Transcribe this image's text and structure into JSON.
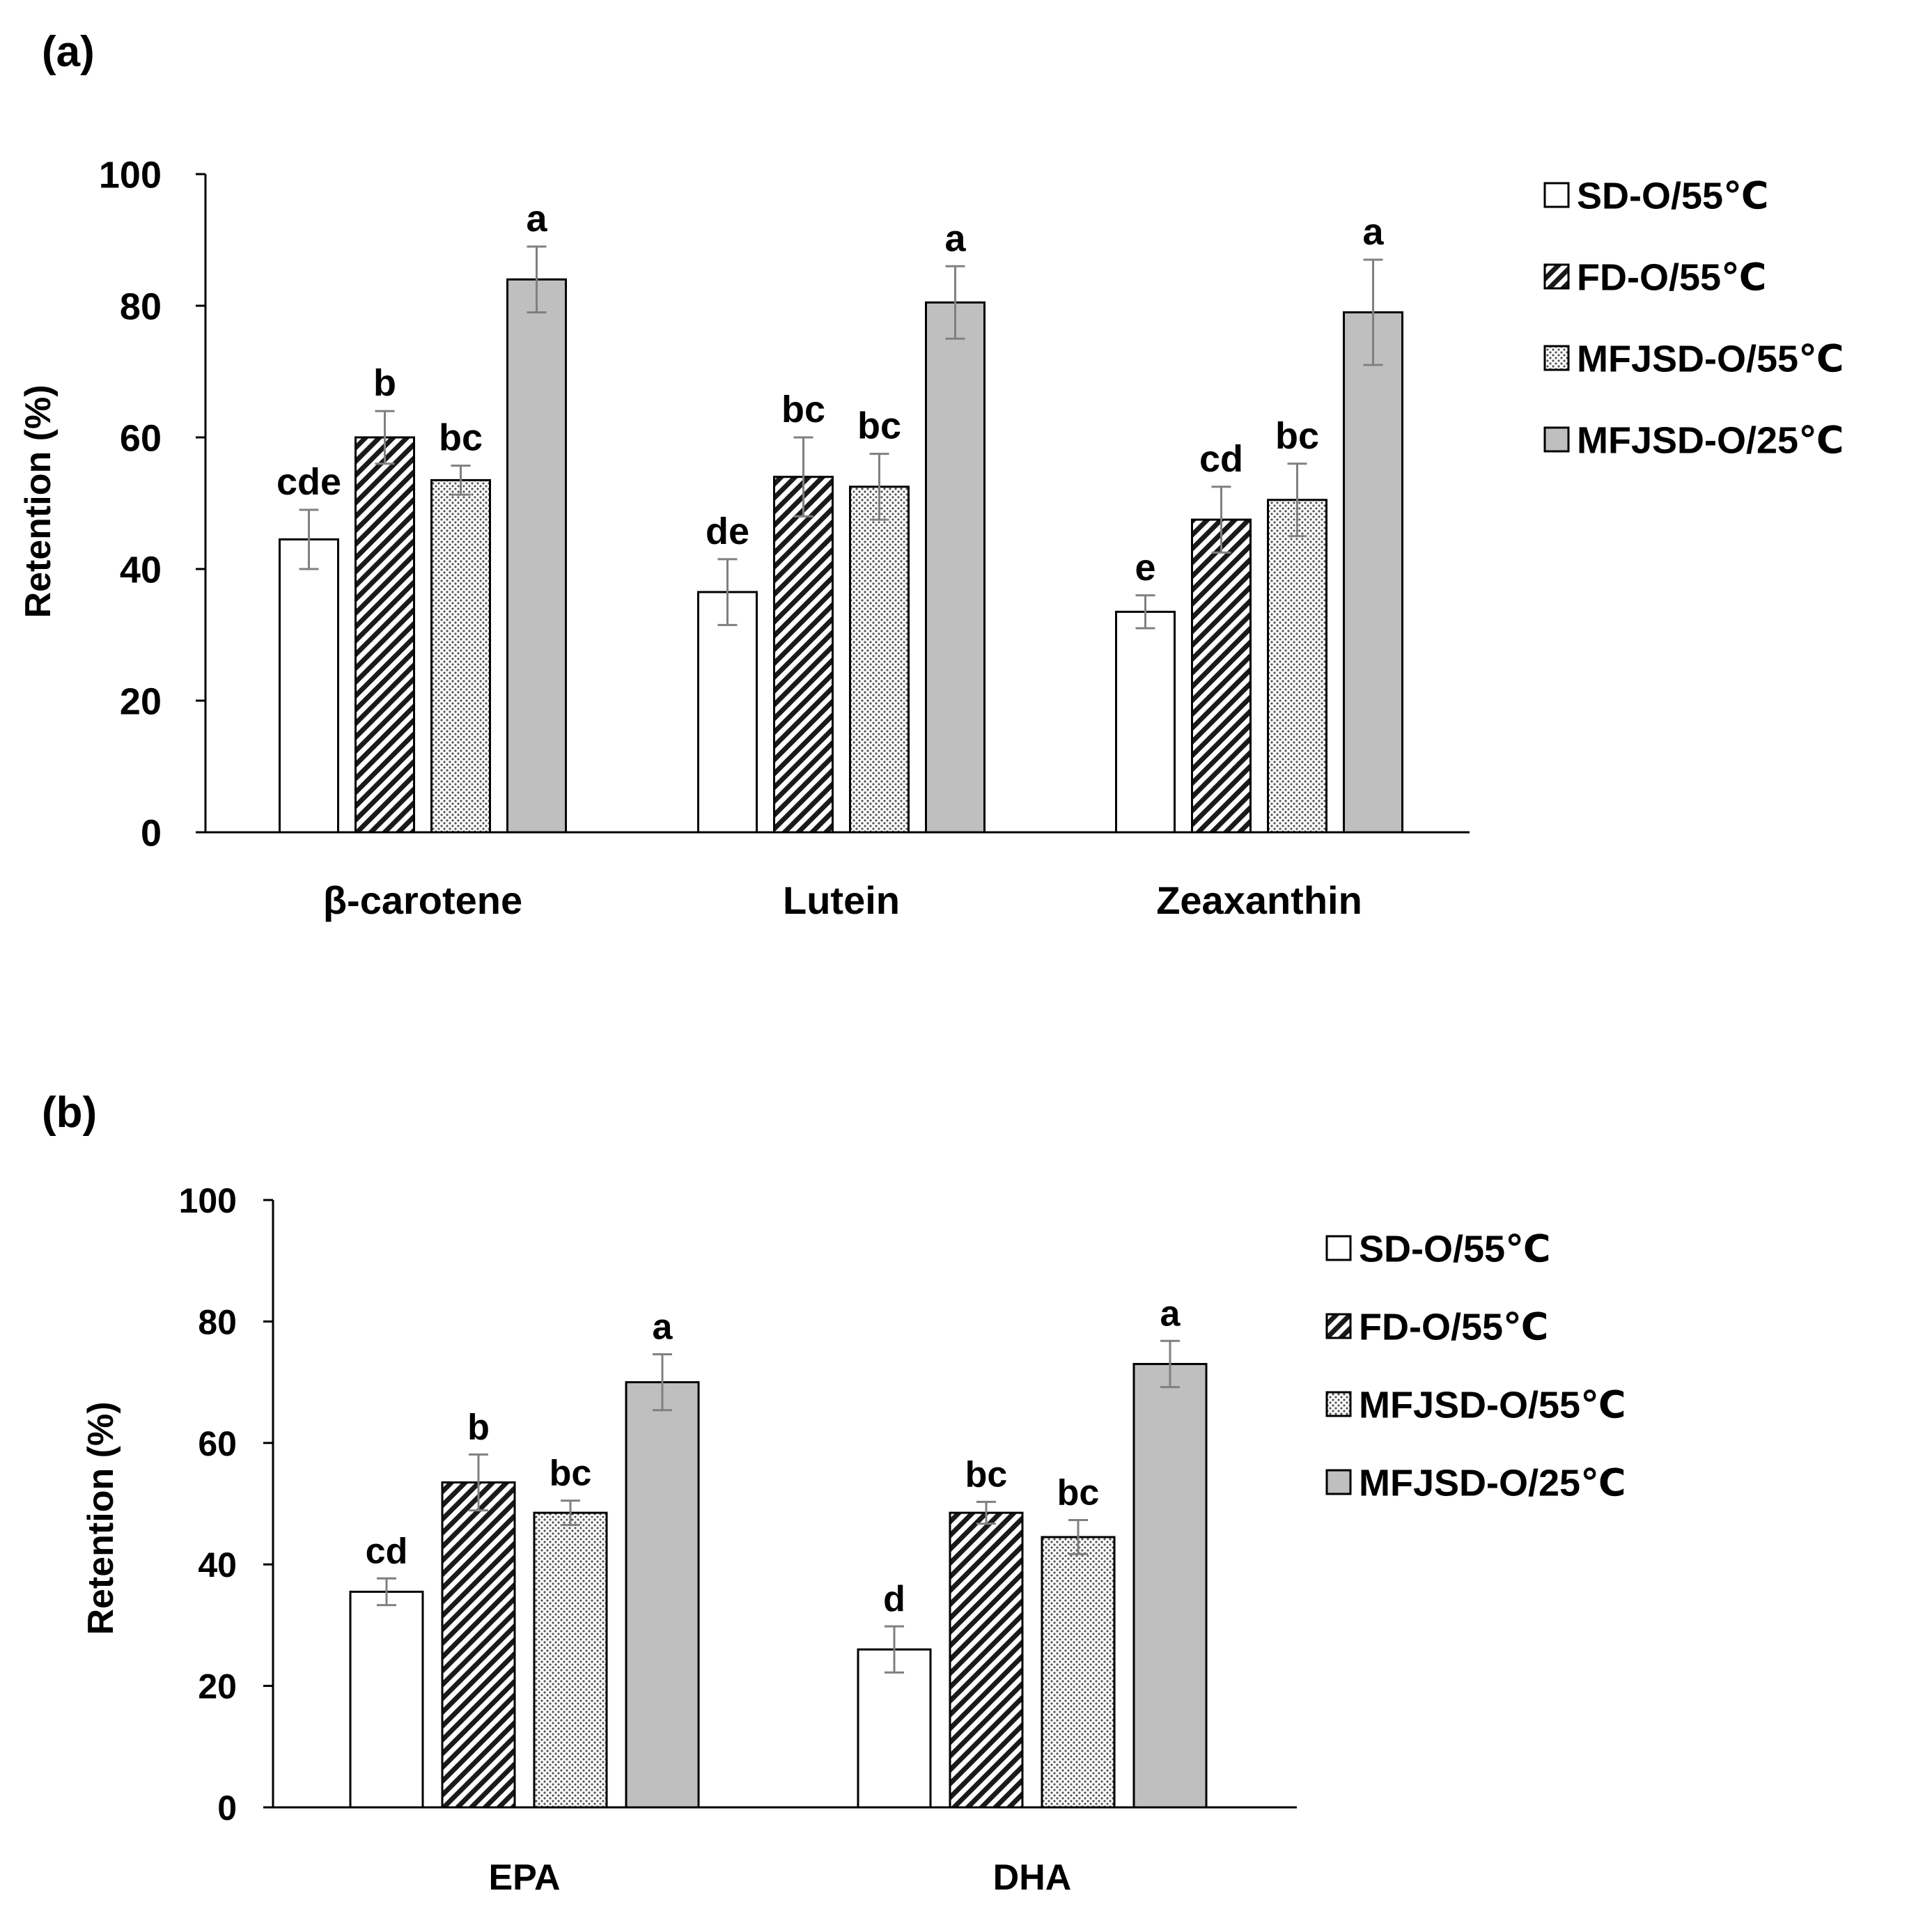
{
  "figure": {
    "panels": [
      {
        "tag": "(a)",
        "legend_labels": [
          "SD-O/55℃",
          "FD-O/55℃",
          "MFJSD-O/55℃",
          "MFJSD-O/25℃"
        ]
      },
      {
        "tag": "(b)",
        "legend_labels": [
          "SD-O/55℃",
          "FD-O/55℃",
          "MFJSD-O/55℃",
          "MFJSD-O/25℃"
        ]
      }
    ]
  },
  "colors": {
    "SD-O/55℃": "#ffffff",
    "FD-O/55℃": "#1a1a1a",
    "MFJSD-O/55℃": "#dcdcdc",
    "MFJSD-O/25℃": "#bfbfbf",
    "error_bar": "#808080",
    "outline": "#000000"
  },
  "chart_data": [
    {
      "type": "bar",
      "panel": "(a)",
      "categories": [
        "β-carotene",
        "Lutein",
        "Zeaxanthin"
      ],
      "ylabel": "Retention  (%)",
      "xlabel": "",
      "ylim": [
        0,
        100
      ],
      "yticks": [
        0,
        20,
        40,
        60,
        80,
        100
      ],
      "series": [
        {
          "name": "SD-O/55℃",
          "pattern": "white",
          "values": [
            44.5,
            36.5,
            33.5
          ],
          "errors": [
            4.5,
            5,
            2.5
          ],
          "letters": [
            "cde",
            "de",
            "e"
          ]
        },
        {
          "name": "FD-O/55℃",
          "pattern": "hatch",
          "values": [
            60,
            54,
            47.5
          ],
          "errors": [
            4,
            6,
            5
          ],
          "letters": [
            "b",
            "bc",
            "cd"
          ]
        },
        {
          "name": "MFJSD-O/55℃",
          "pattern": "dots",
          "values": [
            53.5,
            52.5,
            50.5
          ],
          "errors": [
            2.2,
            5,
            5.5
          ],
          "letters": [
            "bc",
            "bc",
            "bc"
          ]
        },
        {
          "name": "MFJSD-O/25℃",
          "pattern": "gray",
          "values": [
            84,
            80.5,
            79
          ],
          "errors": [
            5,
            5.5,
            8
          ],
          "letters": [
            "a",
            "a",
            "a"
          ]
        }
      ]
    },
    {
      "type": "bar",
      "panel": "(b)",
      "categories": [
        "EPA",
        "DHA"
      ],
      "ylabel": "Retention (%)",
      "xlabel": "",
      "ylim": [
        0,
        100
      ],
      "yticks": [
        0,
        20,
        40,
        60,
        80,
        100
      ],
      "series": [
        {
          "name": "SD-O/55℃",
          "pattern": "white",
          "values": [
            35.5,
            26
          ],
          "errors": [
            2.2,
            3.8
          ],
          "letters": [
            "cd",
            "d"
          ]
        },
        {
          "name": "FD-O/55℃",
          "pattern": "hatch",
          "values": [
            53.5,
            48.5
          ],
          "errors": [
            4.6,
            1.8
          ],
          "letters": [
            "b",
            "bc"
          ]
        },
        {
          "name": "MFJSD-O/55℃",
          "pattern": "dots",
          "values": [
            48.5,
            44.5
          ],
          "errors": [
            2,
            2.8
          ],
          "letters": [
            "bc",
            "bc"
          ]
        },
        {
          "name": "MFJSD-O/25℃",
          "pattern": "gray",
          "values": [
            70,
            73
          ],
          "errors": [
            4.6,
            3.8
          ],
          "letters": [
            "a",
            "a"
          ]
        }
      ]
    }
  ]
}
